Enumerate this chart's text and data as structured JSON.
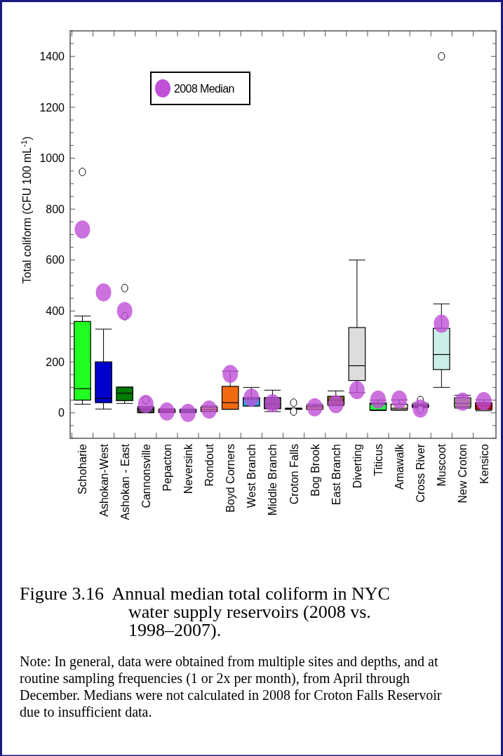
{
  "chart_data": {
    "type": "box",
    "ylabel": "Total coliform (CFU 100 mL$^{-1}$)",
    "categories": [
      "Schoharie",
      "Ashokan-West",
      "Ashokan - East",
      "Cannonsville",
      "Pepacton",
      "Neversink",
      "Rondout",
      "Boyd Corners",
      "West Branch",
      "Middle Branch",
      "Croton Falls",
      "Bog Brook",
      "East Branch",
      "Diverting",
      "Titicus",
      "Amawalk",
      "Cross River",
      "Muscoot",
      "New Croton",
      "Kensico"
    ],
    "ylim": [
      -100,
      1500
    ],
    "yticks": [
      {
        "value": -100,
        "label": null
      },
      {
        "value": -50,
        "label": null
      },
      0,
      {
        "value": 50,
        "label": null
      },
      {
        "value": 100,
        "label": null
      },
      {
        "value": 150,
        "label": null
      },
      200,
      {
        "value": 250,
        "label": null
      },
      {
        "value": 300,
        "label": null
      },
      {
        "value": 350,
        "label": null
      },
      400,
      {
        "value": 450,
        "label": null
      },
      {
        "value": 500,
        "label": null
      },
      {
        "value": 550,
        "label": null
      },
      600,
      {
        "value": 650,
        "label": null
      },
      {
        "value": 700,
        "label": null
      },
      {
        "value": 750,
        "label": null
      },
      800,
      {
        "value": 850,
        "label": null
      },
      {
        "value": 900,
        "label": null
      },
      {
        "value": 950,
        "label": null
      },
      1000,
      {
        "value": 1050,
        "label": null
      },
      {
        "value": 1100,
        "label": null
      },
      {
        "value": 1150,
        "label": null
      },
      1200,
      {
        "value": 1250,
        "label": null
      },
      {
        "value": 1300,
        "label": null
      },
      {
        "value": 1350,
        "label": null
      },
      1400,
      {
        "value": 1450,
        "label": null
      },
      {
        "value": 1500,
        "label": null
      }
    ],
    "legend": "top left",
    "marker": "circle",
    "grid": false,
    "series": [
      {
        "colors": [
          "#22ff22",
          "#0000cc",
          "#007a00",
          "#444444",
          "#e83d6e",
          "#22ccdd",
          "#ffee00",
          "#f26a10",
          "#11b0e8",
          "#555555",
          "#000000",
          "#ffee00",
          "#7a6010",
          "#dddddd",
          "#22ff44",
          "#f0e6c8",
          "#444466",
          "#cceee8",
          "#88ff22",
          "#cc0000"
        ],
        "boxes": [
          {
            "low": 34,
            "q1": 50,
            "median": 95,
            "q3": 359,
            "high": 380,
            "outliers": [
              946
            ]
          },
          {
            "low": 15,
            "q1": 40,
            "median": 57,
            "q3": 200,
            "high": 329
          },
          {
            "low": 37,
            "q1": 48,
            "median": 77,
            "q3": 101,
            "high": 101,
            "outliers": [
              490,
              380
            ]
          },
          {
            "low": 0,
            "q1": 2,
            "median": 13,
            "q3": 21,
            "high": 25,
            "outliers": [
              50
            ]
          },
          {
            "low": 1,
            "q1": 2,
            "median": 6,
            "q3": 13,
            "high": 16
          },
          {
            "low": 1,
            "q1": 2,
            "median": 6,
            "q3": 12,
            "high": 15
          },
          {
            "low": 5,
            "q1": 6,
            "median": 13,
            "q3": 22,
            "high": 27
          },
          {
            "low": 14,
            "q1": 14,
            "median": 40,
            "q3": 104,
            "high": 164
          },
          {
            "low": 27,
            "q1": 27,
            "median": 54,
            "q3": 60,
            "high": 100
          },
          {
            "low": 5,
            "q1": 16,
            "median": 35,
            "q3": 60,
            "high": 89
          },
          {
            "low": 14,
            "q1": 14,
            "median": 16,
            "q3": 18,
            "high": 18,
            "outliers": [
              40,
              5
            ]
          },
          {
            "low": 14,
            "q1": 14,
            "median": 24,
            "q3": 28,
            "high": 34
          },
          {
            "low": 28,
            "q1": 32,
            "median": 50,
            "q3": 65,
            "high": 86
          },
          {
            "low": 79,
            "q1": 127,
            "median": 185,
            "q3": 335,
            "high": 600
          },
          {
            "low": 9,
            "q1": 11,
            "median": 34,
            "q3": 39,
            "high": 50
          },
          {
            "low": 10,
            "q1": 12,
            "median": 18,
            "q3": 34,
            "high": 51
          },
          {
            "low": 20,
            "q1": 23,
            "median": 27,
            "q3": 32,
            "high": 38,
            "outliers": [
              50,
              13
            ]
          },
          {
            "low": 100,
            "q1": 170,
            "median": 229,
            "q3": 332,
            "high": 428,
            "outliers": [
              1400
            ]
          },
          {
            "low": 18,
            "q1": 23,
            "median": 37,
            "q3": 59,
            "high": 69
          },
          {
            "low": 8,
            "q1": 13,
            "median": 27,
            "q3": 40,
            "high": 51
          }
        ]
      },
      {
        "type": "scatter",
        "name": "2008 Median",
        "color": "#c050d8",
        "x": [
          "Schoharie",
          "Ashokan-West",
          "Ashokan - East",
          "Cannonsville",
          "Pepacton",
          "Neversink",
          "Rondout",
          "Boyd Corners",
          "West Branch",
          "Middle Branch",
          "Croton Falls",
          "Bog Brook",
          "East Branch",
          "Diverting",
          "Titicus",
          "Amawalk",
          "Cross River",
          "Muscoot",
          "New Croton",
          "Kensico"
        ],
        "values": [
          720,
          473,
          400,
          35,
          5,
          0,
          13,
          153,
          60,
          38,
          null,
          22,
          34,
          89,
          52,
          52,
          17,
          350,
          44,
          46
        ]
      }
    ],
    "annotations": [
      "Figure 3.16  Annual median total coliform in NYC water supply reservoirs (2008 vs. 1998–2007).",
      "Note: In general, data were obtained from multiple sites and depths, and at routine sampling frequencies (1 or 2x per month), from April through December.  Medians were not calculated in 2008 for Croton Falls Reservoir due to insufficient data."
    ]
  }
}
